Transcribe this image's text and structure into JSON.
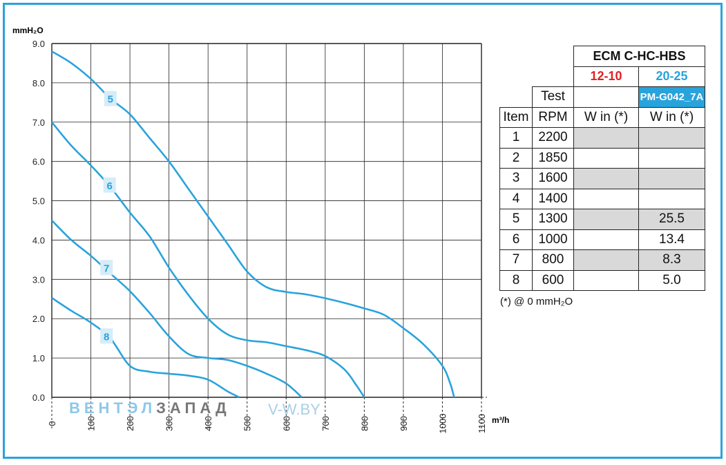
{
  "chart_data": {
    "type": "line",
    "ylabel": "mmH₂O",
    "xlabel": "m³/h",
    "xlim": [
      0,
      1100
    ],
    "ylim": [
      0,
      9
    ],
    "xticks": [
      "0",
      "100",
      "200",
      "300",
      "400",
      "500",
      "600",
      "700",
      "800",
      "900",
      "1000",
      "1100"
    ],
    "yticks": [
      "0.0",
      "1.0",
      "2.0",
      "3.0",
      "4.0",
      "5.0",
      "6.0",
      "7.0",
      "8.0",
      "9.0"
    ],
    "grid": true,
    "series": [
      {
        "name": "5",
        "label_at": [
          150,
          7.6
        ],
        "x": [
          0,
          50,
          100,
          150,
          200,
          250,
          300,
          350,
          400,
          450,
          500,
          550,
          600,
          650,
          700,
          750,
          800,
          850,
          900,
          950,
          1000,
          1020,
          1030
        ],
        "y": [
          8.8,
          8.5,
          8.1,
          7.6,
          7.2,
          6.6,
          6.0,
          5.3,
          4.6,
          3.9,
          3.2,
          2.8,
          2.68,
          2.62,
          2.52,
          2.4,
          2.26,
          2.1,
          1.76,
          1.36,
          0.8,
          0.35,
          0.0
        ]
      },
      {
        "name": "6",
        "label_at": [
          148,
          5.4
        ],
        "x": [
          0,
          50,
          100,
          150,
          200,
          250,
          300,
          350,
          400,
          450,
          500,
          550,
          600,
          650,
          700,
          750,
          780,
          800
        ],
        "y": [
          7.0,
          6.4,
          5.9,
          5.35,
          4.7,
          4.1,
          3.3,
          2.6,
          2.0,
          1.6,
          1.45,
          1.4,
          1.3,
          1.2,
          1.05,
          0.7,
          0.3,
          0.0
        ]
      },
      {
        "name": "7",
        "label_at": [
          140,
          3.3
        ],
        "x": [
          0,
          50,
          100,
          150,
          200,
          250,
          300,
          350,
          400,
          450,
          500,
          550,
          600,
          640
        ],
        "y": [
          4.5,
          4.0,
          3.6,
          3.15,
          2.7,
          2.15,
          1.55,
          1.1,
          1.0,
          0.95,
          0.8,
          0.6,
          0.35,
          0.0
        ]
      },
      {
        "name": "8",
        "label_at": [
          140,
          1.56
        ],
        "x": [
          0,
          50,
          100,
          150,
          200,
          250,
          300,
          350,
          400,
          450,
          480
        ],
        "y": [
          2.53,
          2.2,
          1.9,
          1.5,
          0.8,
          0.65,
          0.6,
          0.55,
          0.45,
          0.15,
          0.0
        ]
      }
    ],
    "colors": {
      "curve": "#29a3dc",
      "label_bg": "#d6ecf8",
      "grid": "#222222",
      "frame": "#29a3dc"
    }
  },
  "table": {
    "model": "ECM C-HC-HBS",
    "variant_red": "12-10",
    "variant_blue": "20-25",
    "badge": "PM-G042_7A",
    "test_label": "Test",
    "headers": [
      "Item",
      "RPM",
      "W in (*)",
      "W in (*)"
    ],
    "rows": [
      {
        "item": "1",
        "rpm": "2200",
        "w1": "",
        "w2": ""
      },
      {
        "item": "2",
        "rpm": "1850",
        "w1": "",
        "w2": ""
      },
      {
        "item": "3",
        "rpm": "1600",
        "w1": "",
        "w2": ""
      },
      {
        "item": "4",
        "rpm": "1400",
        "w1": "",
        "w2": ""
      },
      {
        "item": "5",
        "rpm": "1300",
        "w1": "",
        "w2": "25.5"
      },
      {
        "item": "6",
        "rpm": "1000",
        "w1": "",
        "w2": "13.4"
      },
      {
        "item": "7",
        "rpm": "800",
        "w1": "",
        "w2": "8.3"
      },
      {
        "item": "8",
        "rpm": "600",
        "w1": "",
        "w2": "5.0"
      }
    ],
    "footnote": "(*) @ 0 mmH₂O"
  },
  "watermark": {
    "part1": "ВЕНТЭЛ",
    "part2": "ЗАПАД",
    "site": "V-W.BY"
  }
}
